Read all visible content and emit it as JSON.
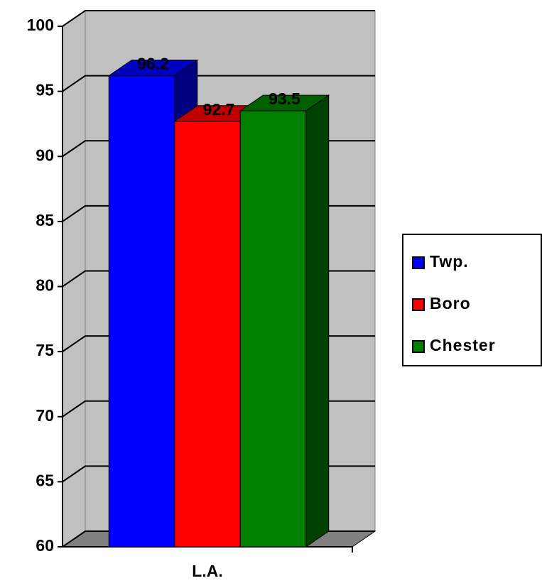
{
  "chart_data": {
    "type": "bar",
    "categories": [
      "L.A."
    ],
    "series": [
      {
        "name": "Twp.",
        "color": "#0000ff",
        "values": [
          96.2
        ]
      },
      {
        "name": "Boro",
        "color": "#ff0000",
        "values": [
          92.7
        ]
      },
      {
        "name": "Chester",
        "color": "#008000",
        "values": [
          93.5
        ]
      }
    ],
    "ylim": [
      60,
      100
    ],
    "yticks": [
      60,
      65,
      70,
      75,
      80,
      85,
      90,
      95,
      100
    ],
    "grid": true,
    "legend": "right"
  }
}
